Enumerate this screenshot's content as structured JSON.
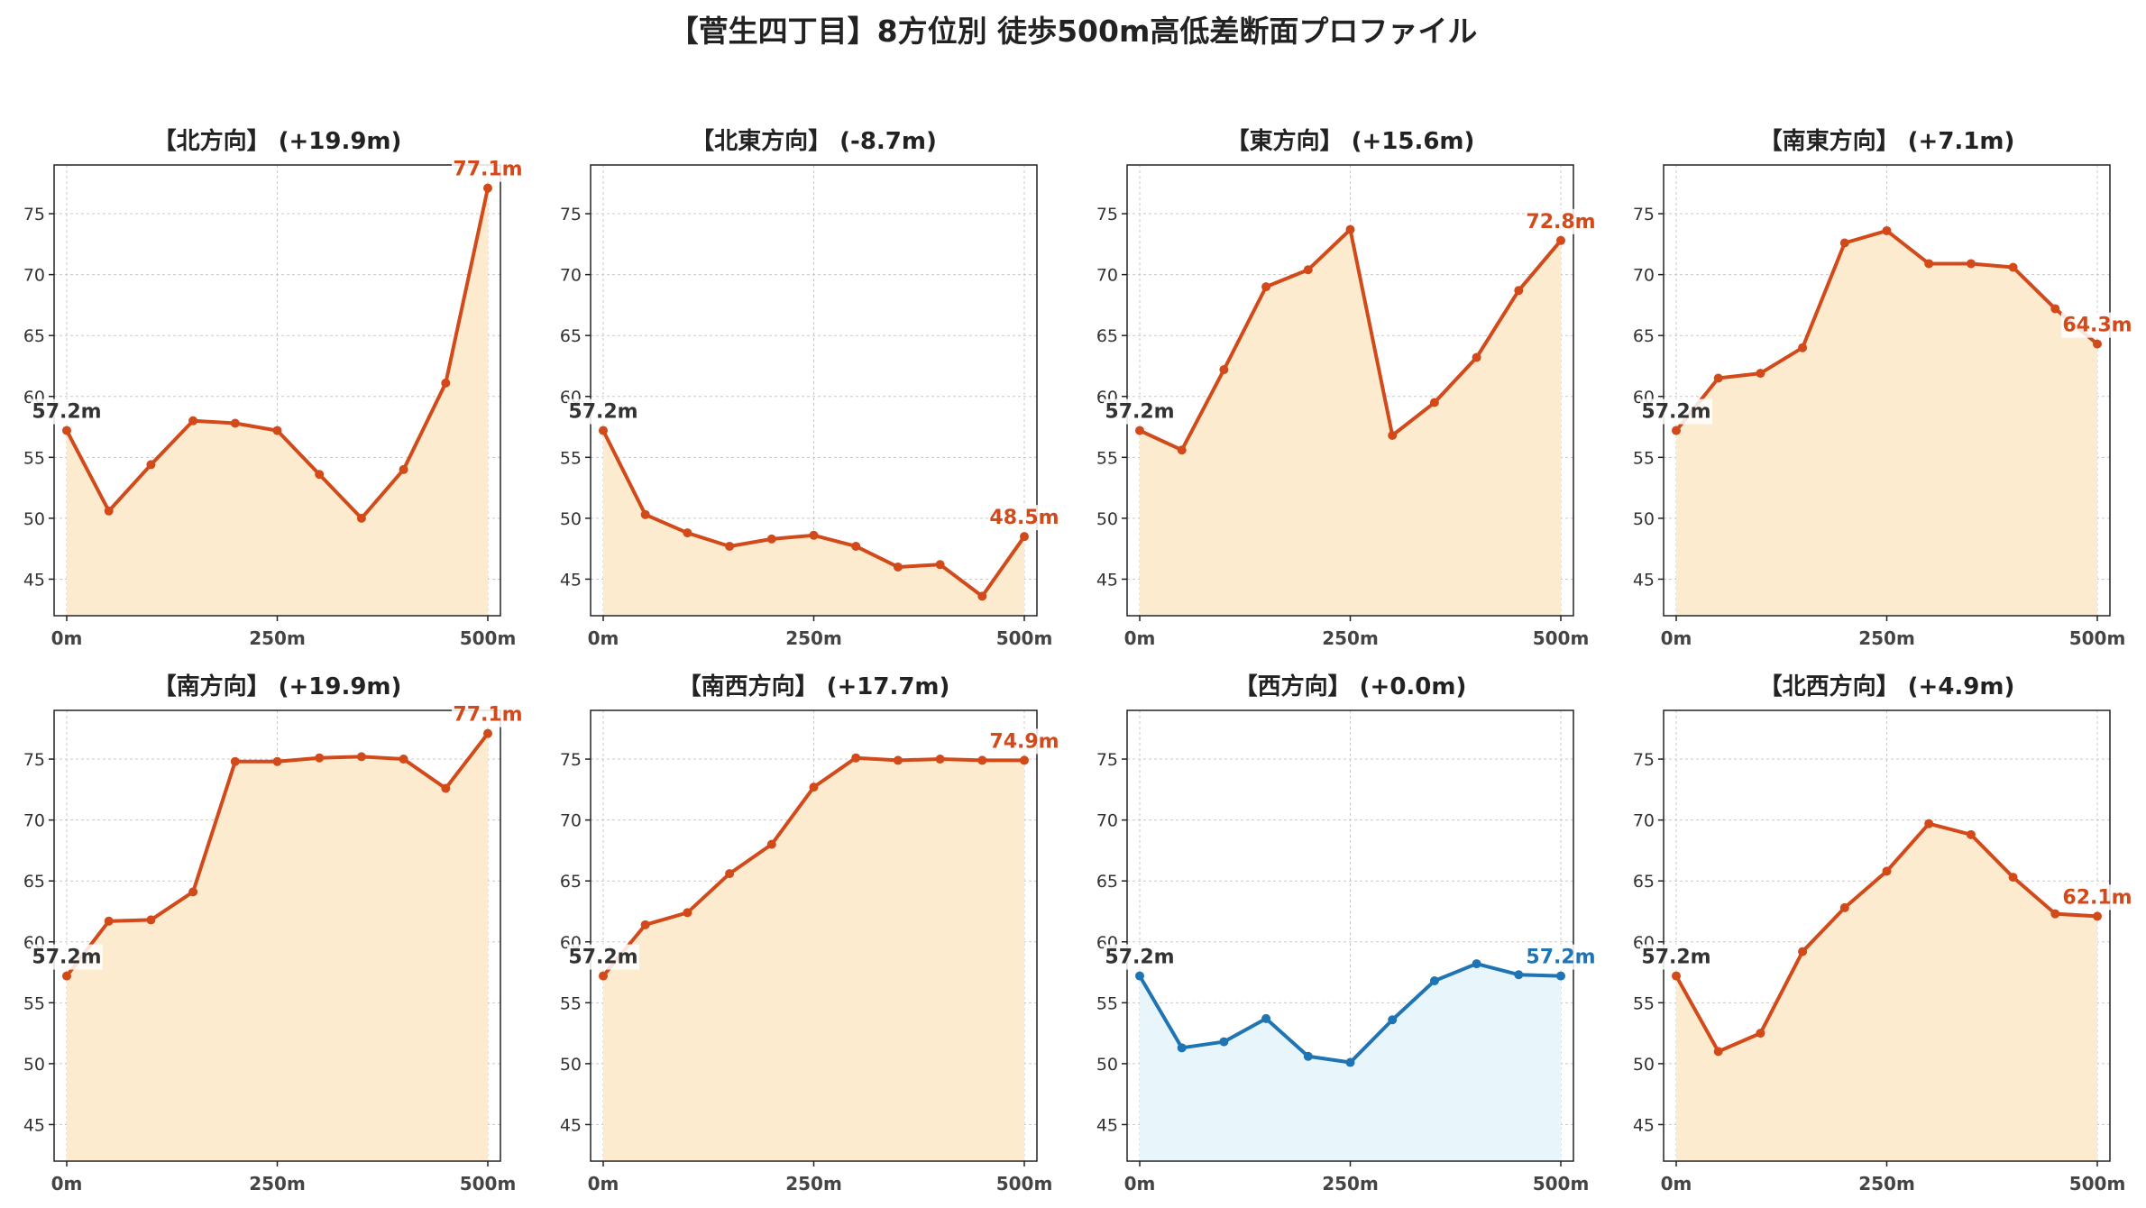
{
  "title": "【菅生四丁目】8方位別 徒歩500m高低差断面プロファイル",
  "colors": {
    "line": "#d24a1a",
    "fill": "#fdebd0",
    "flat_line": "#1f74b4",
    "flat_fill": "#e8f5fb",
    "start_label": "#333333"
  },
  "chart_data": [
    {
      "type": "area",
      "title": "【北方向】 (+19.9m)",
      "x": [
        0,
        50,
        100,
        150,
        200,
        250,
        300,
        350,
        400,
        450,
        500
      ],
      "y": [
        57.2,
        50.6,
        54.4,
        58.0,
        57.8,
        57.2,
        53.6,
        50.0,
        54.0,
        61.1,
        77.1
      ],
      "xticks": [
        "0m",
        "250m",
        "500m"
      ],
      "yticks": [
        "45",
        "50",
        "55",
        "60",
        "65",
        "70",
        "75"
      ],
      "ylim": [
        42,
        79
      ],
      "start_label": "57.2m",
      "end_label": "77.1m",
      "color": "line"
    },
    {
      "type": "area",
      "title": "【北東方向】 (-8.7m)",
      "x": [
        0,
        50,
        100,
        150,
        200,
        250,
        300,
        350,
        400,
        450,
        500
      ],
      "y": [
        57.2,
        50.3,
        48.8,
        47.7,
        48.3,
        48.6,
        47.7,
        46.0,
        46.2,
        43.6,
        48.5
      ],
      "xticks": [
        "0m",
        "250m",
        "500m"
      ],
      "yticks": [
        "45",
        "50",
        "55",
        "60",
        "65",
        "70",
        "75"
      ],
      "ylim": [
        42,
        79
      ],
      "start_label": "57.2m",
      "end_label": "48.5m",
      "color": "line"
    },
    {
      "type": "area",
      "title": "【東方向】 (+15.6m)",
      "x": [
        0,
        50,
        100,
        150,
        200,
        250,
        300,
        350,
        400,
        450,
        500
      ],
      "y": [
        57.2,
        55.6,
        62.2,
        69.0,
        70.4,
        73.7,
        56.8,
        59.5,
        63.2,
        68.7,
        72.8
      ],
      "xticks": [
        "0m",
        "250m",
        "500m"
      ],
      "yticks": [
        "45",
        "50",
        "55",
        "60",
        "65",
        "70",
        "75"
      ],
      "ylim": [
        42,
        79
      ],
      "start_label": "57.2m",
      "end_label": "72.8m",
      "color": "line"
    },
    {
      "type": "area",
      "title": "【南東方向】 (+7.1m)",
      "x": [
        0,
        50,
        100,
        150,
        200,
        250,
        300,
        350,
        400,
        450,
        500
      ],
      "y": [
        57.2,
        61.5,
        61.9,
        64.0,
        72.6,
        73.6,
        70.9,
        70.9,
        70.6,
        67.2,
        64.3
      ],
      "xticks": [
        "0m",
        "250m",
        "500m"
      ],
      "yticks": [
        "45",
        "50",
        "55",
        "60",
        "65",
        "70",
        "75"
      ],
      "ylim": [
        42,
        79
      ],
      "start_label": "57.2m",
      "end_label": "64.3m",
      "color": "line"
    },
    {
      "type": "area",
      "title": "【南方向】 (+19.9m)",
      "x": [
        0,
        50,
        100,
        150,
        200,
        250,
        300,
        350,
        400,
        450,
        500
      ],
      "y": [
        57.2,
        61.7,
        61.8,
        64.1,
        74.8,
        74.8,
        75.1,
        75.2,
        75.0,
        72.6,
        77.1
      ],
      "xticks": [
        "0m",
        "250m",
        "500m"
      ],
      "yticks": [
        "45",
        "50",
        "55",
        "60",
        "65",
        "70",
        "75"
      ],
      "ylim": [
        42,
        79
      ],
      "start_label": "57.2m",
      "end_label": "77.1m",
      "color": "line"
    },
    {
      "type": "area",
      "title": "【南西方向】 (+17.7m)",
      "x": [
        0,
        50,
        100,
        150,
        200,
        250,
        300,
        350,
        400,
        450,
        500
      ],
      "y": [
        57.2,
        61.4,
        62.4,
        65.6,
        68.0,
        72.7,
        75.1,
        74.9,
        75.0,
        74.9,
        74.9
      ],
      "xticks": [
        "0m",
        "250m",
        "500m"
      ],
      "yticks": [
        "45",
        "50",
        "55",
        "60",
        "65",
        "70",
        "75"
      ],
      "ylim": [
        42,
        79
      ],
      "start_label": "57.2m",
      "end_label": "74.9m",
      "color": "line"
    },
    {
      "type": "area",
      "title": "【西方向】 (+0.0m)",
      "x": [
        0,
        50,
        100,
        150,
        200,
        250,
        300,
        350,
        400,
        450,
        500
      ],
      "y": [
        57.2,
        51.3,
        51.8,
        53.7,
        50.6,
        50.1,
        53.6,
        56.8,
        58.2,
        57.3,
        57.2
      ],
      "xticks": [
        "0m",
        "250m",
        "500m"
      ],
      "yticks": [
        "45",
        "50",
        "55",
        "60",
        "65",
        "70",
        "75"
      ],
      "ylim": [
        42,
        79
      ],
      "start_label": "57.2m",
      "end_label": "57.2m",
      "color": "flat_line"
    },
    {
      "type": "area",
      "title": "【北西方向】 (+4.9m)",
      "x": [
        0,
        50,
        100,
        150,
        200,
        250,
        300,
        350,
        400,
        450,
        500
      ],
      "y": [
        57.2,
        51.0,
        52.5,
        59.2,
        62.8,
        65.8,
        69.7,
        68.8,
        65.3,
        62.3,
        62.1
      ],
      "xticks": [
        "0m",
        "250m",
        "500m"
      ],
      "yticks": [
        "45",
        "50",
        "55",
        "60",
        "65",
        "70",
        "75"
      ],
      "ylim": [
        42,
        79
      ],
      "start_label": "57.2m",
      "end_label": "62.1m",
      "color": "line"
    }
  ]
}
